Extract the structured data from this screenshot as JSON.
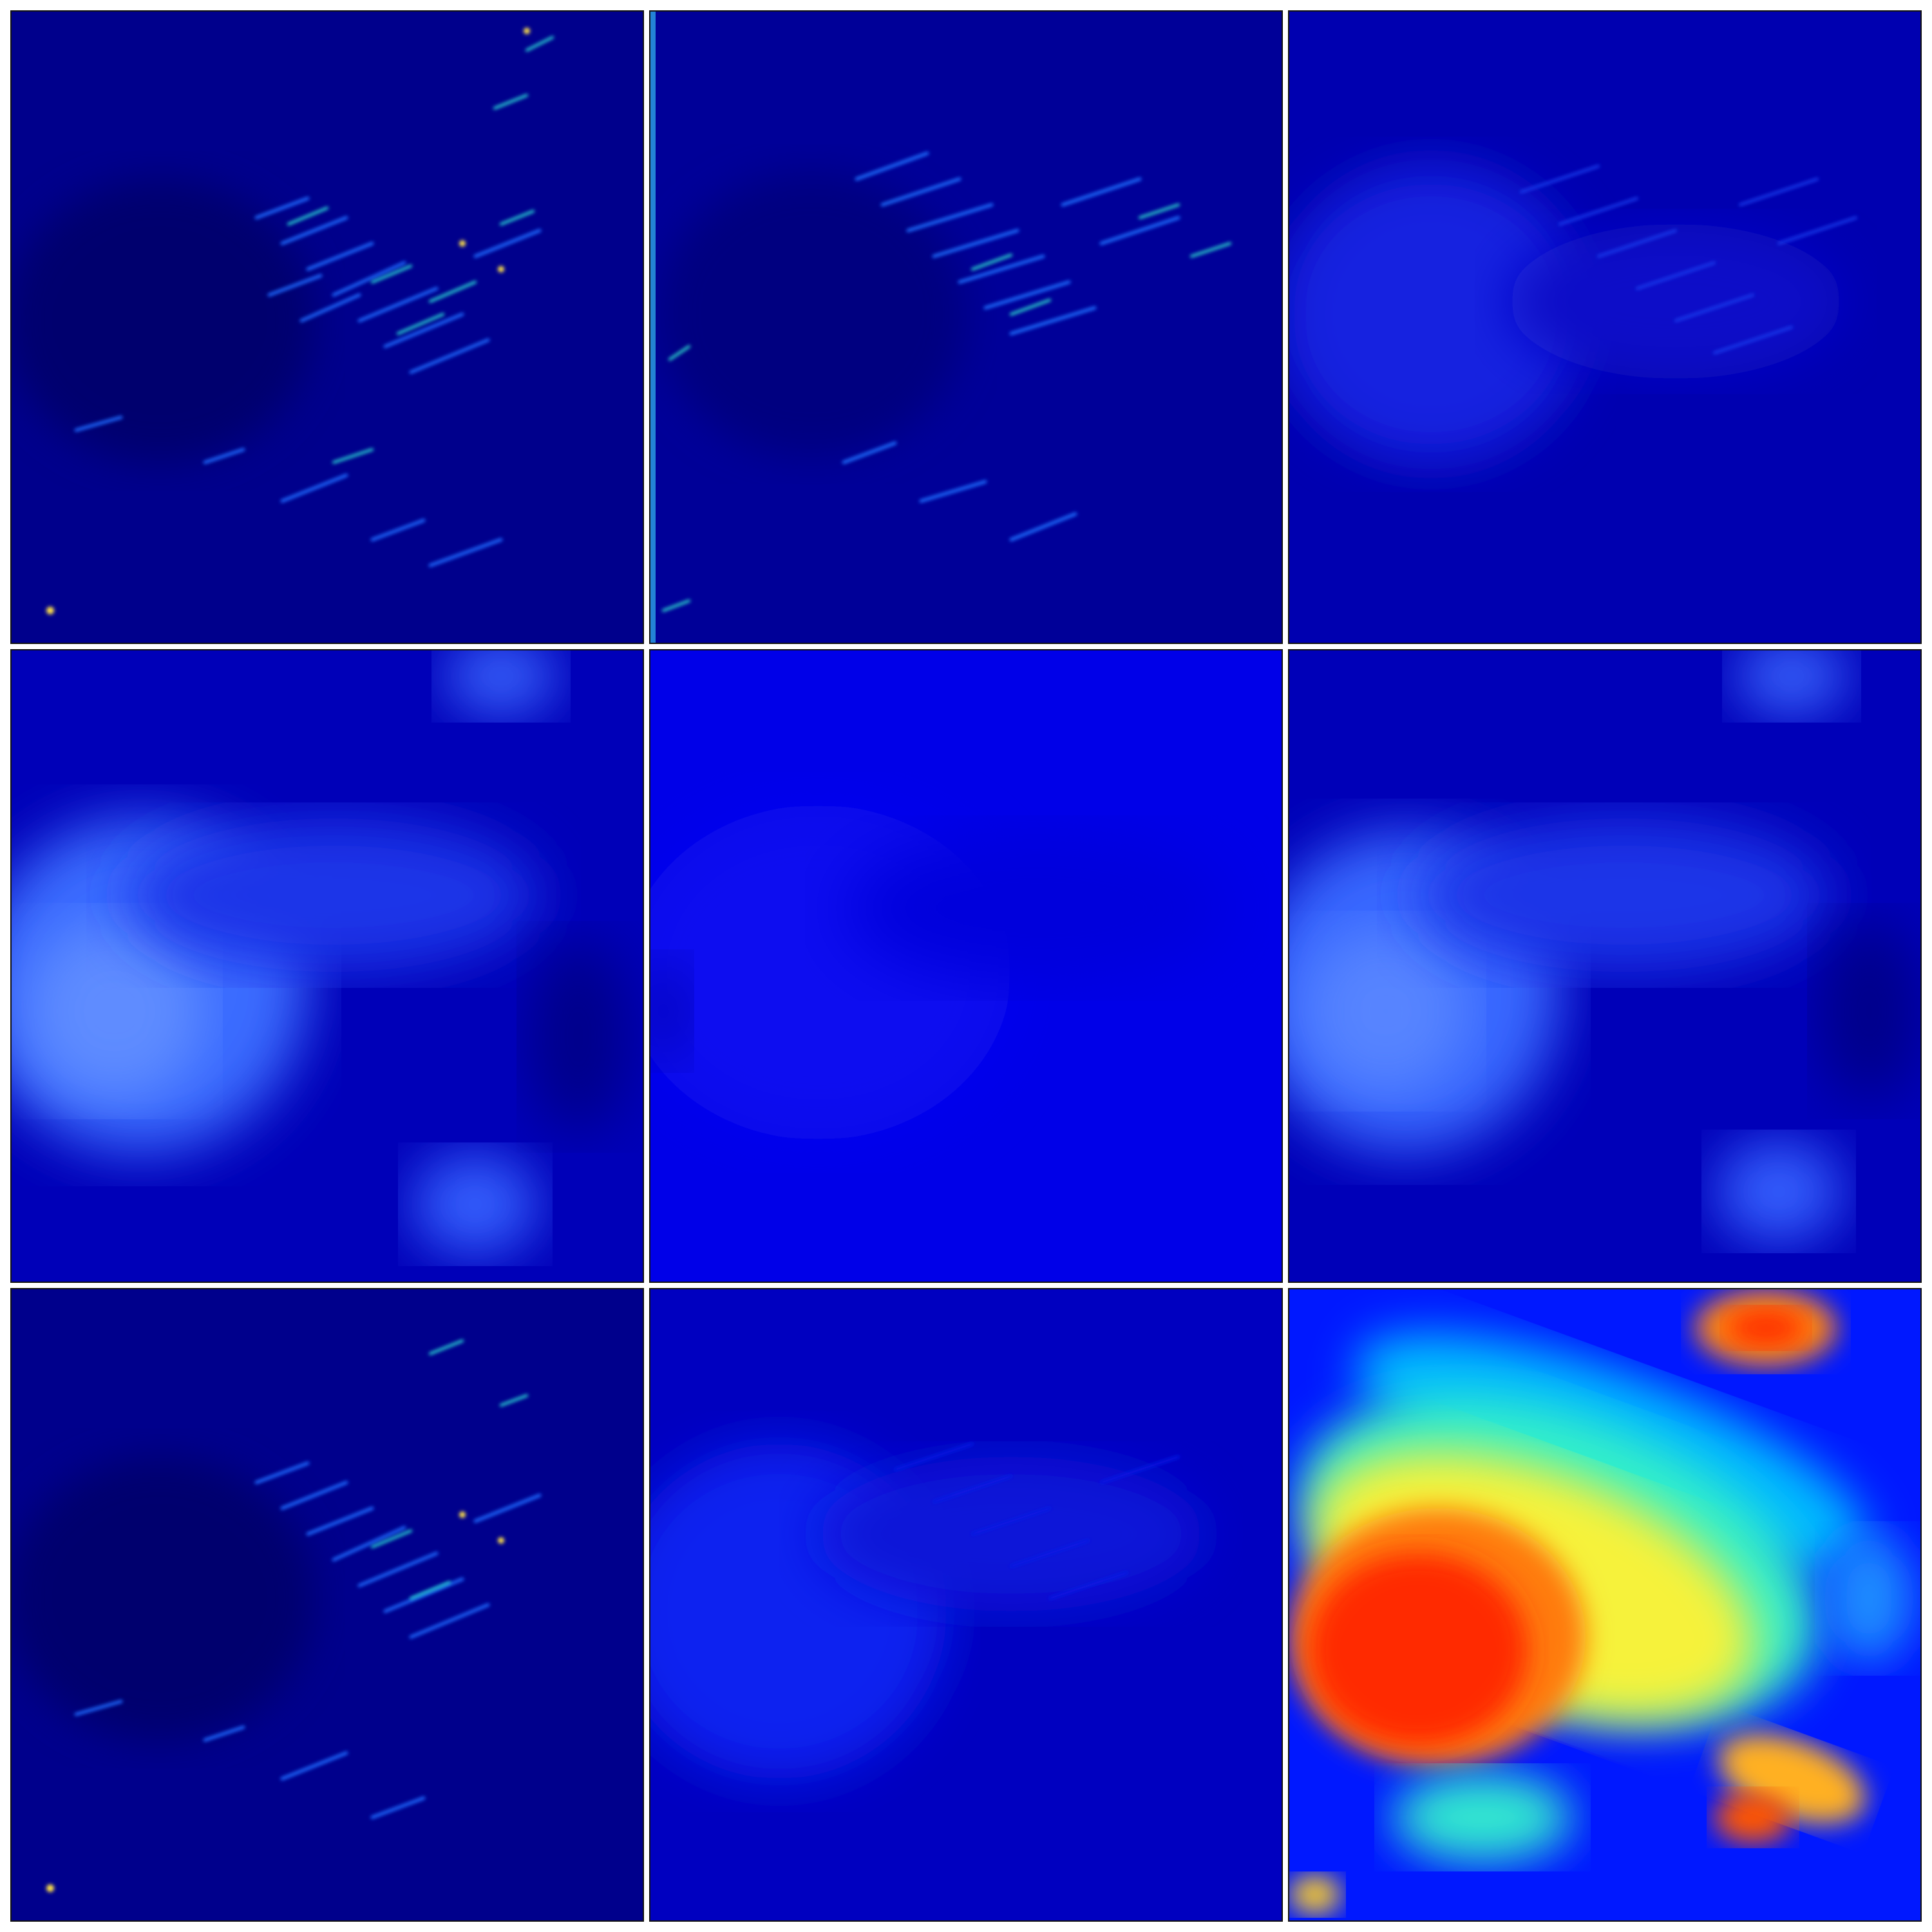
{
  "figure": {
    "colormap": "jet",
    "rows": 3,
    "cols": 3,
    "panels": [
      {
        "id": "r1c1",
        "style": "edges",
        "base": "#00008c",
        "intensity": 0.9
      },
      {
        "id": "r1c2",
        "style": "edges",
        "base": "#000098",
        "intensity": 0.8
      },
      {
        "id": "r1c3",
        "style": "smooth-edges",
        "base": "#0000b8",
        "intensity": 0.5
      },
      {
        "id": "r2c1",
        "style": "cloud",
        "base": "#0000c8",
        "intensity": 0.6
      },
      {
        "id": "r2c2",
        "style": "flat",
        "base": "#0000ee",
        "intensity": 0.2
      },
      {
        "id": "r2c3",
        "style": "cloud",
        "base": "#0000c0",
        "intensity": 0.55
      },
      {
        "id": "r3c1",
        "style": "edges",
        "base": "#00008c",
        "intensity": 0.85
      },
      {
        "id": "r3c2",
        "style": "cloud-edges",
        "base": "#0000d0",
        "intensity": 0.5
      },
      {
        "id": "r3c3",
        "style": "heat",
        "base": "#0010ff",
        "intensity": 1.0
      }
    ]
  }
}
